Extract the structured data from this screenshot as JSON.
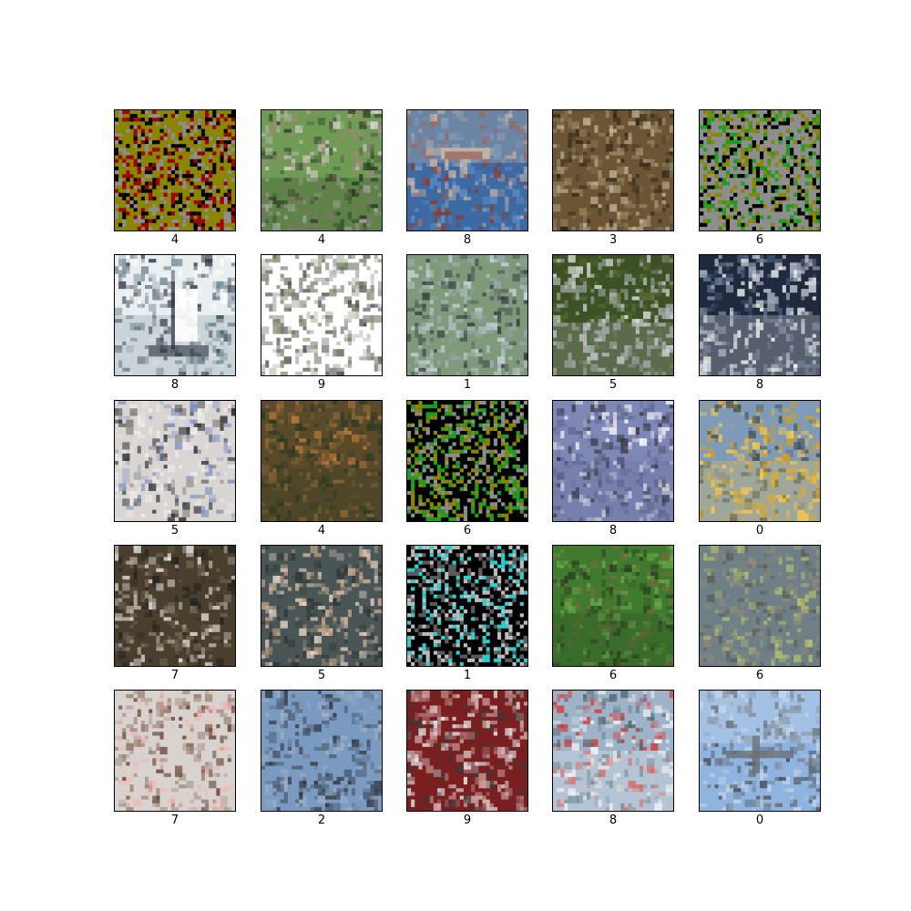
{
  "images": [
    {
      "label": "4",
      "scene": "noisy-olive",
      "palette": [
        "#8a8600",
        "#8e8e8e",
        "#000000",
        "#a10000"
      ]
    },
    {
      "label": "4",
      "scene": "animal-on-grass-rotated",
      "palette": [
        "#6f9b55",
        "#9c8a77",
        "#d8d2cc",
        "#2b3a22"
      ]
    },
    {
      "label": "8",
      "scene": "airship-blue-sky",
      "palette": [
        "#3d6aa3",
        "#5a8dc7",
        "#c7b6a8",
        "#8b3a2c"
      ]
    },
    {
      "label": "3",
      "scene": "cat-closeup",
      "palette": [
        "#6b5534",
        "#9a8461",
        "#c9b79a",
        "#2f2719"
      ]
    },
    {
      "label": "6",
      "scene": "noisy-gray",
      "palette": [
        "#8e8e8e",
        "#8a8600",
        "#000000",
        "#1f9e1f"
      ]
    },
    {
      "label": "8",
      "scene": "sailboat",
      "palette": [
        "#e9eef1",
        "#6f858f",
        "#ffffff",
        "#2a2f3a"
      ]
    },
    {
      "label": "9",
      "scene": "truck-road",
      "palette": [
        "#ffffff",
        "#8f8d86",
        "#4d4d4a",
        "#6c7f5a"
      ]
    },
    {
      "label": "1",
      "scene": "pickup-truck",
      "palette": [
        "#7f9a7a",
        "#2f3338",
        "#9aa8b4",
        "#cbd8de"
      ]
    },
    {
      "label": "5",
      "scene": "white-dog-grass",
      "palette": [
        "#3c5224",
        "#5c6f3a",
        "#e8e8ea",
        "#b9bcc6"
      ]
    },
    {
      "label": "8",
      "scene": "speedboat-water",
      "palette": [
        "#1f2a3f",
        "#ffffff",
        "#c9d1dd",
        "#4c5f7d"
      ]
    },
    {
      "label": "5",
      "scene": "white-dog-sunglasses",
      "palette": [
        "#d9d5d2",
        "#f2f0ef",
        "#7d8ec1",
        "#2b2a2a"
      ]
    },
    {
      "label": "4",
      "scene": "deer-field",
      "palette": [
        "#5a4a2a",
        "#8a6a3a",
        "#c17b3d",
        "#2b3a22"
      ]
    },
    {
      "label": "6",
      "scene": "noisy-black",
      "palette": [
        "#000000",
        "#8a8600",
        "#8e8e8e",
        "#1f9e1f"
      ]
    },
    {
      "label": "8",
      "scene": "boat-blue-water",
      "palette": [
        "#7f87b7",
        "#5f6891",
        "#ffffff",
        "#2f2f38"
      ]
    },
    {
      "label": "0",
      "scene": "seaplane",
      "palette": [
        "#7f9bb7",
        "#ffcc44",
        "#3c4a53",
        "#d7a11b"
      ]
    },
    {
      "label": "7",
      "scene": "dog-face-brown",
      "palette": [
        "#4a3f2e",
        "#f3f0ea",
        "#7a6a55",
        "#22211f"
      ]
    },
    {
      "label": "5",
      "scene": "puppy-lying",
      "palette": [
        "#4a5656",
        "#d4b08f",
        "#f0ddcf",
        "#2c3333"
      ]
    },
    {
      "label": "1",
      "scene": "noisy-truck",
      "palette": [
        "#000000",
        "#bdbdbd",
        "#5b5b5b",
        "#2ad0d0"
      ]
    },
    {
      "label": "6",
      "scene": "frog-grass",
      "palette": [
        "#3f7a2e",
        "#6fae4b",
        "#7a6b3f",
        "#263f1e"
      ]
    },
    {
      "label": "6",
      "scene": "frog-mud",
      "palette": [
        "#6f7f87",
        "#8e8b79",
        "#b7c46a",
        "#5a5a52"
      ]
    },
    {
      "label": "7",
      "scene": "horse-rider",
      "palette": [
        "#d9d3cf",
        "#9a8172",
        "#5a3a2a",
        "#f1b7b7"
      ]
    },
    {
      "label": "2",
      "scene": "bird-branch",
      "palette": [
        "#7a9ac1",
        "#2b2f38",
        "#4b5a68",
        "#9fb3c8"
      ]
    },
    {
      "label": "9",
      "scene": "red-truck",
      "palette": [
        "#7a1f1f",
        "#f0f2f5",
        "#d9b0b0",
        "#3a3a3a"
      ]
    },
    {
      "label": "8",
      "scene": "ship-harbor",
      "palette": [
        "#9fb3c8",
        "#f4f6f8",
        "#4f6b77",
        "#d9322c"
      ]
    },
    {
      "label": "0",
      "scene": "airplane-sky",
      "palette": [
        "#8fb4df",
        "#6b6f73",
        "#c5d9ee",
        "#3e4144"
      ]
    }
  ]
}
